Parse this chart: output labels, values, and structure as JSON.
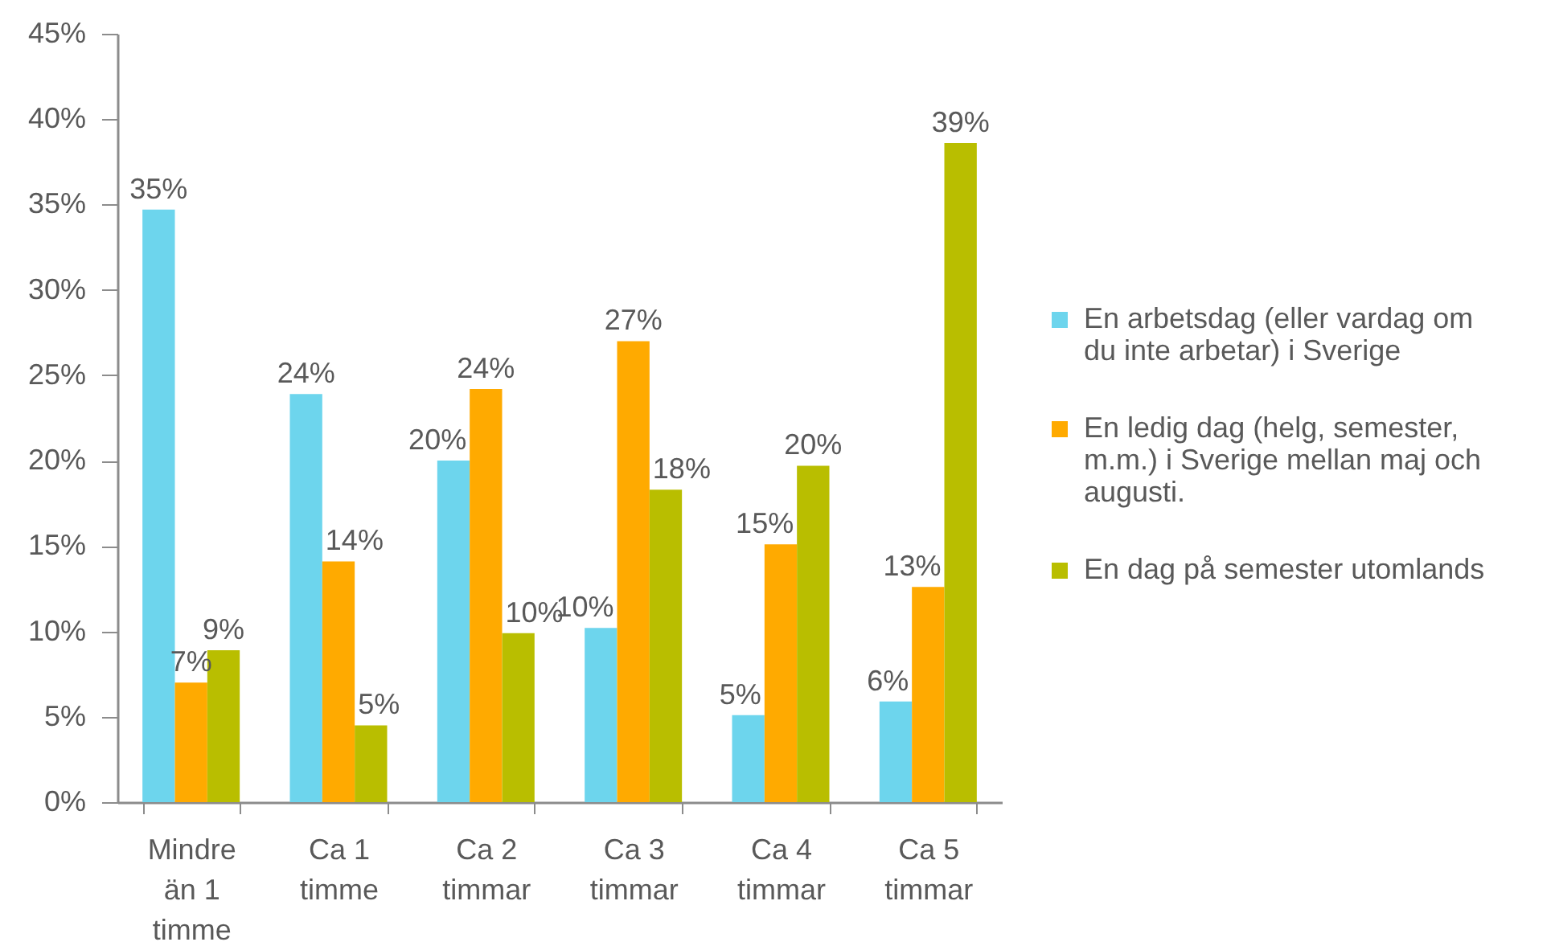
{
  "chart_data": {
    "type": "bar",
    "categories": [
      "Mindre än 1 timme",
      "Ca 1 timme",
      "Ca 2 timmar",
      "Ca 3 timmar",
      "Ca 4 timmar",
      "Ca 5 timmar"
    ],
    "series": [
      {
        "name": "En arbetsdag (eller vardag om du inte arbetar) i Sverige",
        "color": "#6dd5ed",
        "values": [
          34.7,
          23.9,
          20.0,
          10.2,
          5.1,
          5.9
        ],
        "value_labels": [
          "35%",
          "24%",
          "20%",
          "10%",
          "5%",
          "6%"
        ]
      },
      {
        "name": "En ledig dag (helg, semester, m.m.) i Sverige mellan maj och augusti.",
        "color": "#ffaa00",
        "values": [
          7.0,
          14.1,
          24.2,
          27.0,
          15.1,
          12.6
        ],
        "value_labels": [
          "7%",
          "14%",
          "24%",
          "27%",
          "15%",
          "13%"
        ]
      },
      {
        "name": "En dag på semester utomlands",
        "color": "#b9be00",
        "values": [
          8.9,
          4.5,
          9.9,
          18.3,
          19.7,
          38.6
        ],
        "value_labels": [
          "9%",
          "5%",
          "10%",
          "18%",
          "20%",
          "39%"
        ]
      }
    ],
    "ylim": [
      0,
      45
    ],
    "yticks": [
      {
        "value": 0,
        "label": "0%"
      },
      {
        "value": 5,
        "label": "5%"
      },
      {
        "value": 10,
        "label": "10%"
      },
      {
        "value": 15,
        "label": "15%"
      },
      {
        "value": 20,
        "label": "20%"
      },
      {
        "value": 25,
        "label": "25%"
      },
      {
        "value": 30,
        "label": "30%"
      },
      {
        "value": 35,
        "label": "35%"
      },
      {
        "value": 40,
        "label": "40%"
      },
      {
        "value": 45,
        "label": "45%"
      }
    ],
    "legend": "right"
  }
}
